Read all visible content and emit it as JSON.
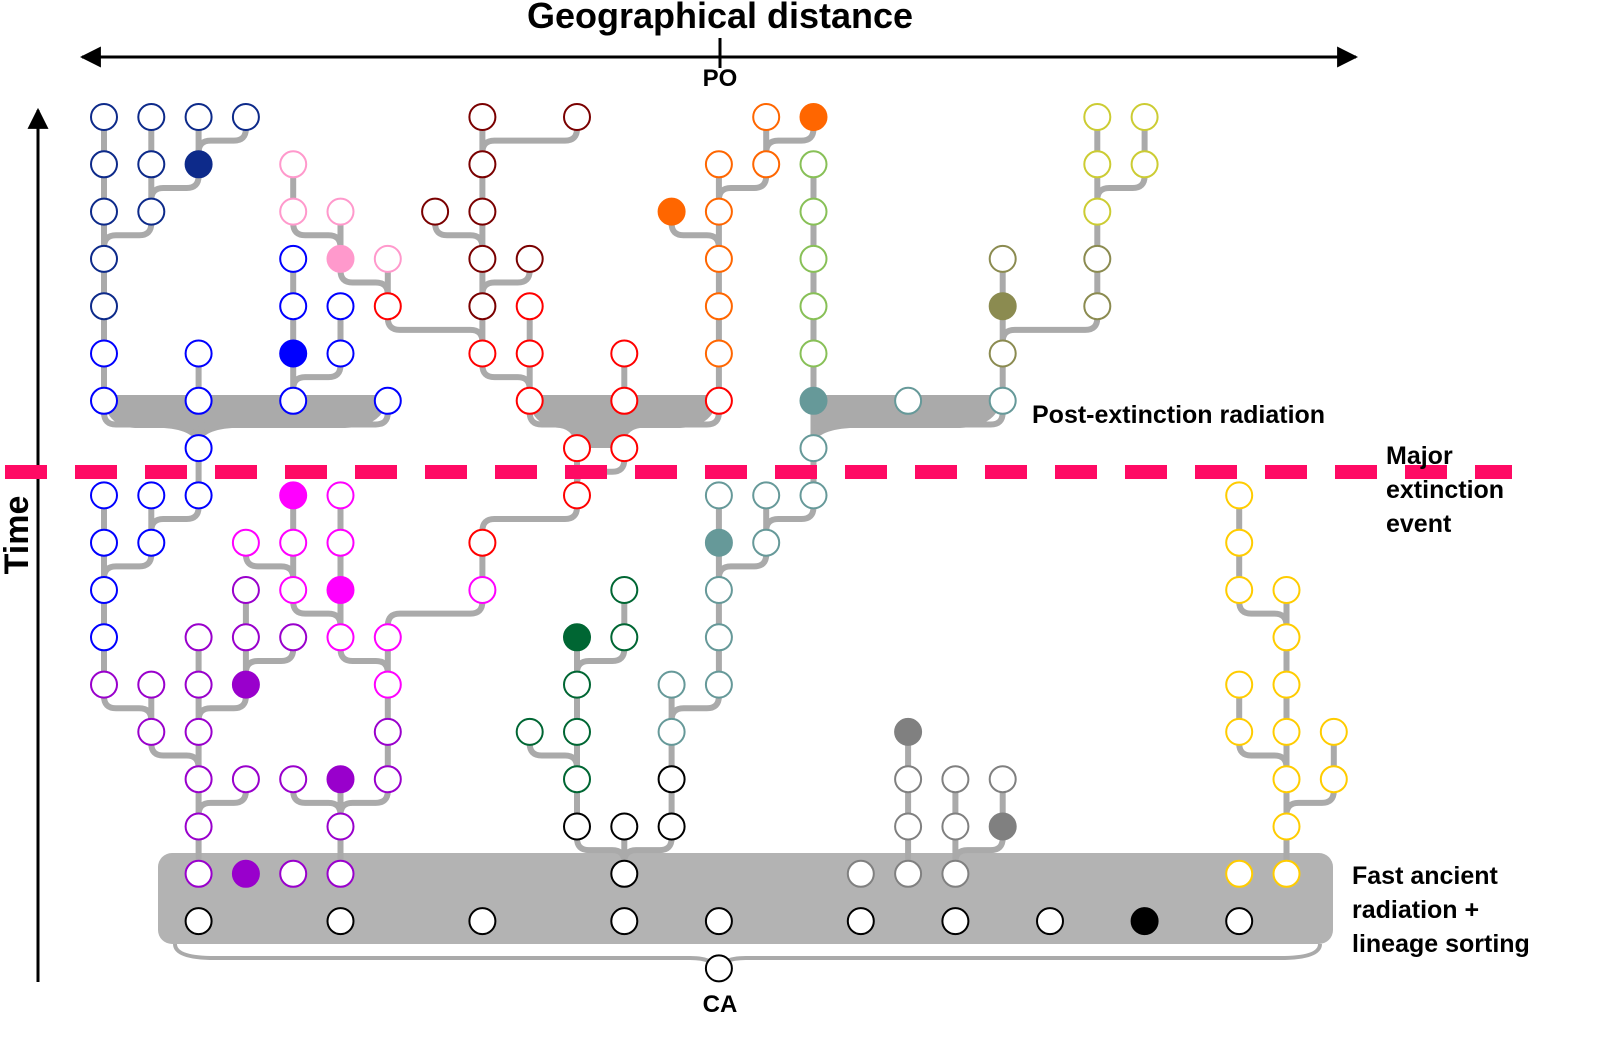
{
  "header": {
    "title": "Geographical distance"
  },
  "axis": {
    "top_label": "PO",
    "bottom_label": "CA",
    "time_label": "Time"
  },
  "annotations": {
    "post_extinction": "Post-extinction radiation",
    "extinction": [
      "Major",
      "extinction",
      "event"
    ],
    "ancient": [
      "Fast ancient",
      "radiation +",
      "lineage sorting"
    ]
  }
}
